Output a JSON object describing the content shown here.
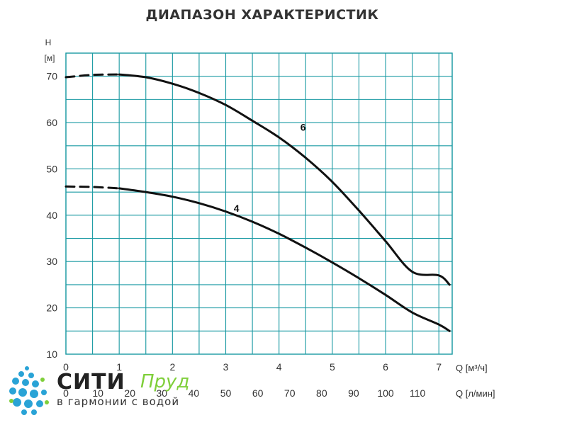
{
  "chart_data": {
    "type": "line",
    "title": "ДИАПАЗОН ХАРАКТЕРИСТИК",
    "ylabel_top": "H",
    "ylabel_unit": "[м]",
    "xlabel_primary": "Q [м³/ч]",
    "xlabel_secondary": "Q [л/мин]",
    "ylim": [
      10,
      75
    ],
    "xlim": [
      0,
      7.25
    ],
    "yticks": [
      10,
      20,
      30,
      40,
      50,
      60,
      70
    ],
    "xticks_primary": [
      0,
      1,
      2,
      3,
      4,
      5,
      6,
      7
    ],
    "xticks_secondary": [
      0,
      10,
      20,
      30,
      40,
      50,
      60,
      70,
      80,
      90,
      100,
      110
    ],
    "grid": true,
    "series": [
      {
        "name": "6",
        "x": [
          0,
          0.5,
          1.0,
          1.5,
          2.0,
          2.5,
          3.0,
          3.5,
          4.0,
          4.5,
          5.0,
          5.5,
          6.0,
          6.5,
          7.0,
          7.2
        ],
        "y": [
          69.8,
          70.3,
          70.4,
          69.8,
          68.4,
          66.4,
          63.8,
          60.4,
          56.8,
          52.4,
          47.2,
          41.0,
          34.4,
          27.8,
          27.0,
          25.0
        ],
        "dashed_until": 0.9
      },
      {
        "name": "4",
        "x": [
          0,
          0.5,
          1.0,
          1.5,
          2.0,
          2.5,
          3.0,
          3.5,
          4.0,
          4.5,
          5.0,
          5.5,
          6.0,
          6.5,
          7.0,
          7.2
        ],
        "y": [
          46.2,
          46.1,
          45.8,
          45.0,
          44.0,
          42.6,
          40.8,
          38.6,
          36.0,
          33.0,
          29.8,
          26.4,
          22.8,
          19.0,
          16.4,
          15.0
        ],
        "dashed_until": 0.8
      }
    ],
    "line_color": "#111111",
    "grid_color": "#1a9aa3",
    "series_labels_positions_note": "labels placed near curves"
  },
  "logo": {
    "name_part1": "СИТИ",
    "name_part2": "Пруд",
    "tagline": "в гармонии с водой",
    "accent_color": "#7fcf3a",
    "drop_color": "#29a3d6"
  }
}
